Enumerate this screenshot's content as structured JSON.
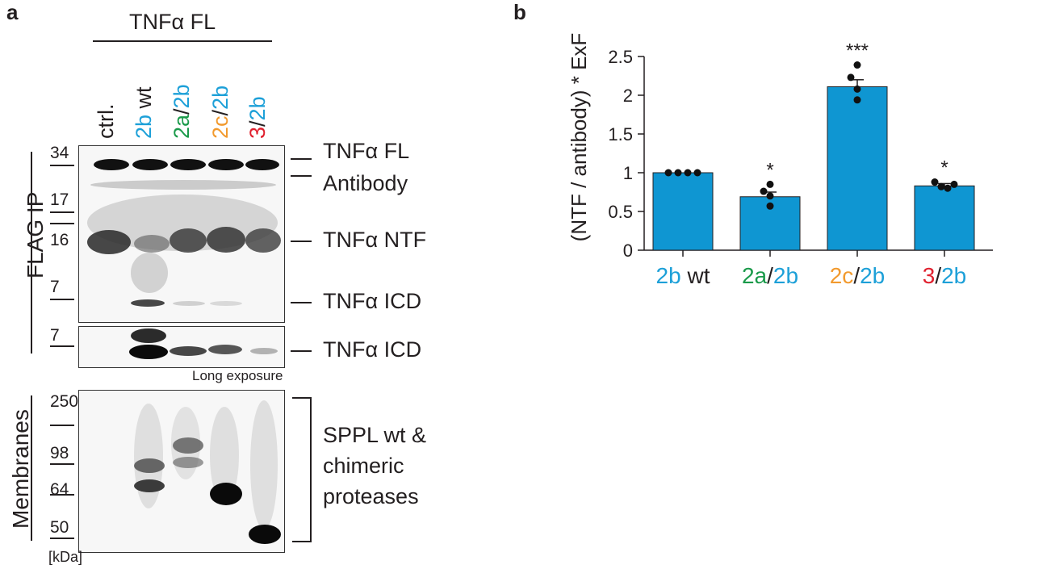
{
  "panel_a": {
    "letter": "a",
    "group_label": "TNFα FL",
    "lanes": [
      {
        "parts": [
          {
            "text": "ctrl.",
            "color": "black"
          }
        ]
      },
      {
        "parts": [
          {
            "text": "2b",
            "color": "blue"
          },
          {
            "text": " wt",
            "color": "black"
          }
        ]
      },
      {
        "parts": [
          {
            "text": "2a",
            "color": "green"
          },
          {
            "text": "/",
            "color": "black"
          },
          {
            "text": "2b",
            "color": "blue"
          }
        ]
      },
      {
        "parts": [
          {
            "text": "2c",
            "color": "orange"
          },
          {
            "text": "/",
            "color": "black"
          },
          {
            "text": "2b",
            "color": "blue"
          }
        ]
      },
      {
        "parts": [
          {
            "text": "3",
            "color": "red"
          },
          {
            "text": "/",
            "color": "black"
          },
          {
            "text": "2b",
            "color": "blue"
          }
        ]
      }
    ],
    "flag_ip_label": "FLAG IP",
    "membranes_label": "Membranes",
    "mw_top": [
      "34",
      "17",
      "16",
      "7"
    ],
    "mw_long": [
      "7"
    ],
    "mw_membranes": [
      "250",
      "98",
      "64",
      "50"
    ],
    "kda": "[kDa]",
    "band_labels": [
      "TNFα FL",
      "Antibody",
      "TNFα NTF",
      "TNFα ICD"
    ],
    "long_band_label": "TNFα ICD",
    "long_exposure": "Long exposure",
    "membrane_label_lines": [
      "SPPL wt &",
      "chimeric",
      "proteases"
    ]
  },
  "panel_b": {
    "letter": "b",
    "ylabel": "(NTF / antibody) * ExF",
    "category_parts": [
      [
        {
          "text": "2b",
          "color": "blue"
        },
        {
          "text": " wt",
          "color": "black"
        }
      ],
      [
        {
          "text": "2a",
          "color": "green"
        },
        {
          "text": "/",
          "color": "black"
        },
        {
          "text": "2b",
          "color": "blue"
        }
      ],
      [
        {
          "text": "2c",
          "color": "orange"
        },
        {
          "text": "/",
          "color": "black"
        },
        {
          "text": "2b",
          "color": "blue"
        }
      ],
      [
        {
          "text": "3",
          "color": "red"
        },
        {
          "text": "/",
          "color": "black"
        },
        {
          "text": "2b",
          "color": "blue"
        }
      ]
    ]
  },
  "colors": {
    "bar": "#0f96d2",
    "blue": "#1da0d8",
    "green": "#1a9a4a",
    "orange": "#f29a2e",
    "red": "#e0202e",
    "black": "#231f20"
  },
  "chart_data": {
    "type": "bar",
    "categories": [
      "2b wt",
      "2a/2b",
      "2c/2b",
      "3/2b"
    ],
    "values": [
      1.0,
      0.69,
      2.11,
      0.83
    ],
    "errors": [
      0.0,
      0.06,
      0.09,
      0.03
    ],
    "points": [
      [
        1.0,
        1.0,
        1.0,
        1.0
      ],
      [
        0.85,
        0.76,
        0.7,
        0.57
      ],
      [
        2.39,
        2.23,
        2.08,
        1.94
      ],
      [
        0.88,
        0.82,
        0.8,
        0.85
      ]
    ],
    "significance": [
      "",
      "*",
      "***",
      "*"
    ],
    "title": "",
    "xlabel": "",
    "ylabel": "(NTF / antibody) * ExF",
    "ylim": [
      0,
      2.5
    ],
    "yticks": [
      0,
      0.5,
      1,
      1.5,
      2,
      2.5
    ],
    "ytick_labels": [
      "0",
      "0.5",
      "1",
      "1.5",
      "2",
      "2.5"
    ],
    "grid": false,
    "legend": "none"
  }
}
